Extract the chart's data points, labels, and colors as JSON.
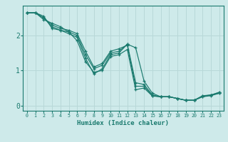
{
  "xlabel": "Humidex (Indice chaleur)",
  "ylabel": "",
  "bg_color": "#ceeaea",
  "line_color": "#1a7a6e",
  "grid_color": "#b8d8d8",
  "xlim": [
    -0.5,
    23.5
  ],
  "ylim": [
    -0.15,
    2.85
  ],
  "yticks": [
    0,
    1,
    2
  ],
  "xticks": [
    0,
    1,
    2,
    3,
    4,
    5,
    6,
    7,
    8,
    9,
    10,
    11,
    12,
    13,
    14,
    15,
    16,
    17,
    18,
    19,
    20,
    21,
    22,
    23
  ],
  "lines": [
    {
      "x": [
        0,
        1,
        2,
        3,
        4,
        5,
        6,
        7,
        8,
        9,
        10,
        11,
        12,
        13,
        14,
        15,
        16,
        17,
        18,
        19,
        20,
        21,
        22,
        23
      ],
      "y": [
        2.65,
        2.65,
        2.55,
        2.2,
        2.15,
        2.05,
        1.95,
        1.35,
        0.9,
        1.05,
        1.45,
        1.5,
        1.75,
        1.65,
        0.7,
        0.35,
        0.25,
        0.25,
        0.2,
        0.15,
        0.15,
        0.25,
        0.3,
        0.35
      ]
    },
    {
      "x": [
        0,
        1,
        2,
        3,
        4,
        5,
        6,
        7,
        8,
        9,
        10,
        11,
        12,
        13,
        14,
        15,
        16,
        17,
        18,
        19,
        20,
        21,
        22,
        23
      ],
      "y": [
        2.65,
        2.65,
        2.5,
        2.25,
        2.15,
        2.1,
        2.0,
        1.45,
        1.05,
        1.15,
        1.5,
        1.55,
        1.75,
        0.65,
        0.6,
        0.3,
        0.25,
        0.25,
        0.2,
        0.15,
        0.15,
        0.28,
        0.3,
        0.38
      ]
    },
    {
      "x": [
        0,
        1,
        2,
        3,
        4,
        5,
        6,
        7,
        8,
        9,
        10,
        11,
        12,
        13,
        14,
        15,
        16,
        17,
        18,
        19,
        20,
        21,
        22,
        23
      ],
      "y": [
        2.65,
        2.65,
        2.5,
        2.3,
        2.2,
        2.15,
        2.05,
        1.55,
        1.1,
        1.2,
        1.55,
        1.62,
        1.72,
        0.55,
        0.55,
        0.28,
        0.25,
        0.25,
        0.2,
        0.15,
        0.15,
        0.27,
        0.3,
        0.37
      ]
    },
    {
      "x": [
        0,
        1,
        2,
        3,
        4,
        5,
        6,
        7,
        8,
        9,
        10,
        11,
        12,
        13,
        14,
        15,
        16,
        17,
        18,
        19,
        20,
        21,
        22,
        23
      ],
      "y": [
        2.65,
        2.65,
        2.45,
        2.35,
        2.25,
        2.1,
        1.85,
        1.25,
        0.95,
        1.0,
        1.4,
        1.45,
        1.6,
        0.45,
        0.5,
        0.27,
        0.25,
        0.25,
        0.2,
        0.15,
        0.15,
        0.25,
        0.28,
        0.35
      ]
    }
  ]
}
